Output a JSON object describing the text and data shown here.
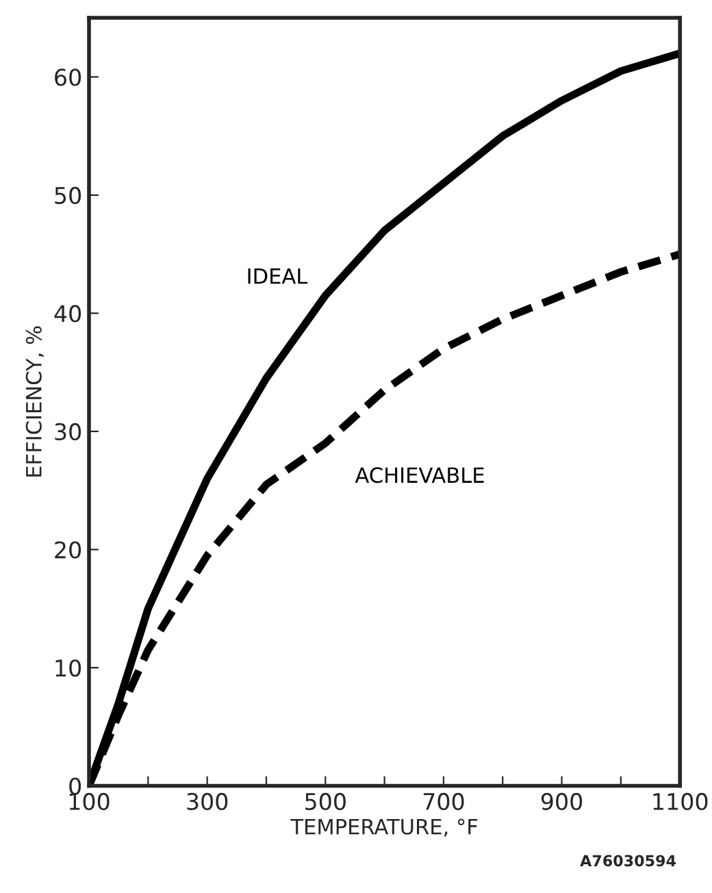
{
  "chart_data": {
    "type": "line",
    "xlabel": "TEMPERATURE, °F",
    "ylabel": "EFFICIENCY, %",
    "x": [
      100,
      150,
      200,
      300,
      400,
      500,
      600,
      700,
      800,
      900,
      1000,
      1100
    ],
    "series": [
      {
        "name": "IDEAL",
        "color": "#000000",
        "line_style": "solid",
        "values": [
          0,
          7,
          15,
          26,
          34.5,
          41.5,
          47,
          51,
          55,
          58,
          60.5,
          62
        ]
      },
      {
        "name": "ACHIEVABLE",
        "color": "#000000",
        "line_style": "dashed",
        "values": [
          0,
          6,
          11.5,
          19.5,
          25.5,
          29,
          33.5,
          37,
          39.5,
          41.5,
          43.5,
          45
        ]
      }
    ],
    "xlim": [
      100,
      1100
    ],
    "ylim": [
      0,
      65
    ],
    "xticks": [
      100,
      {
        "value": 200,
        "label": null
      },
      300,
      {
        "value": 400,
        "label": null
      },
      500,
      {
        "value": 600,
        "label": null
      },
      700,
      {
        "value": 800,
        "label": null
      },
      900,
      {
        "value": 1000,
        "label": null
      },
      1100
    ],
    "yticks": [
      0,
      10,
      20,
      30,
      40,
      50,
      60
    ],
    "grid": false,
    "legend": false,
    "marker": "none",
    "annotations": [
      "A76030594"
    ]
  }
}
